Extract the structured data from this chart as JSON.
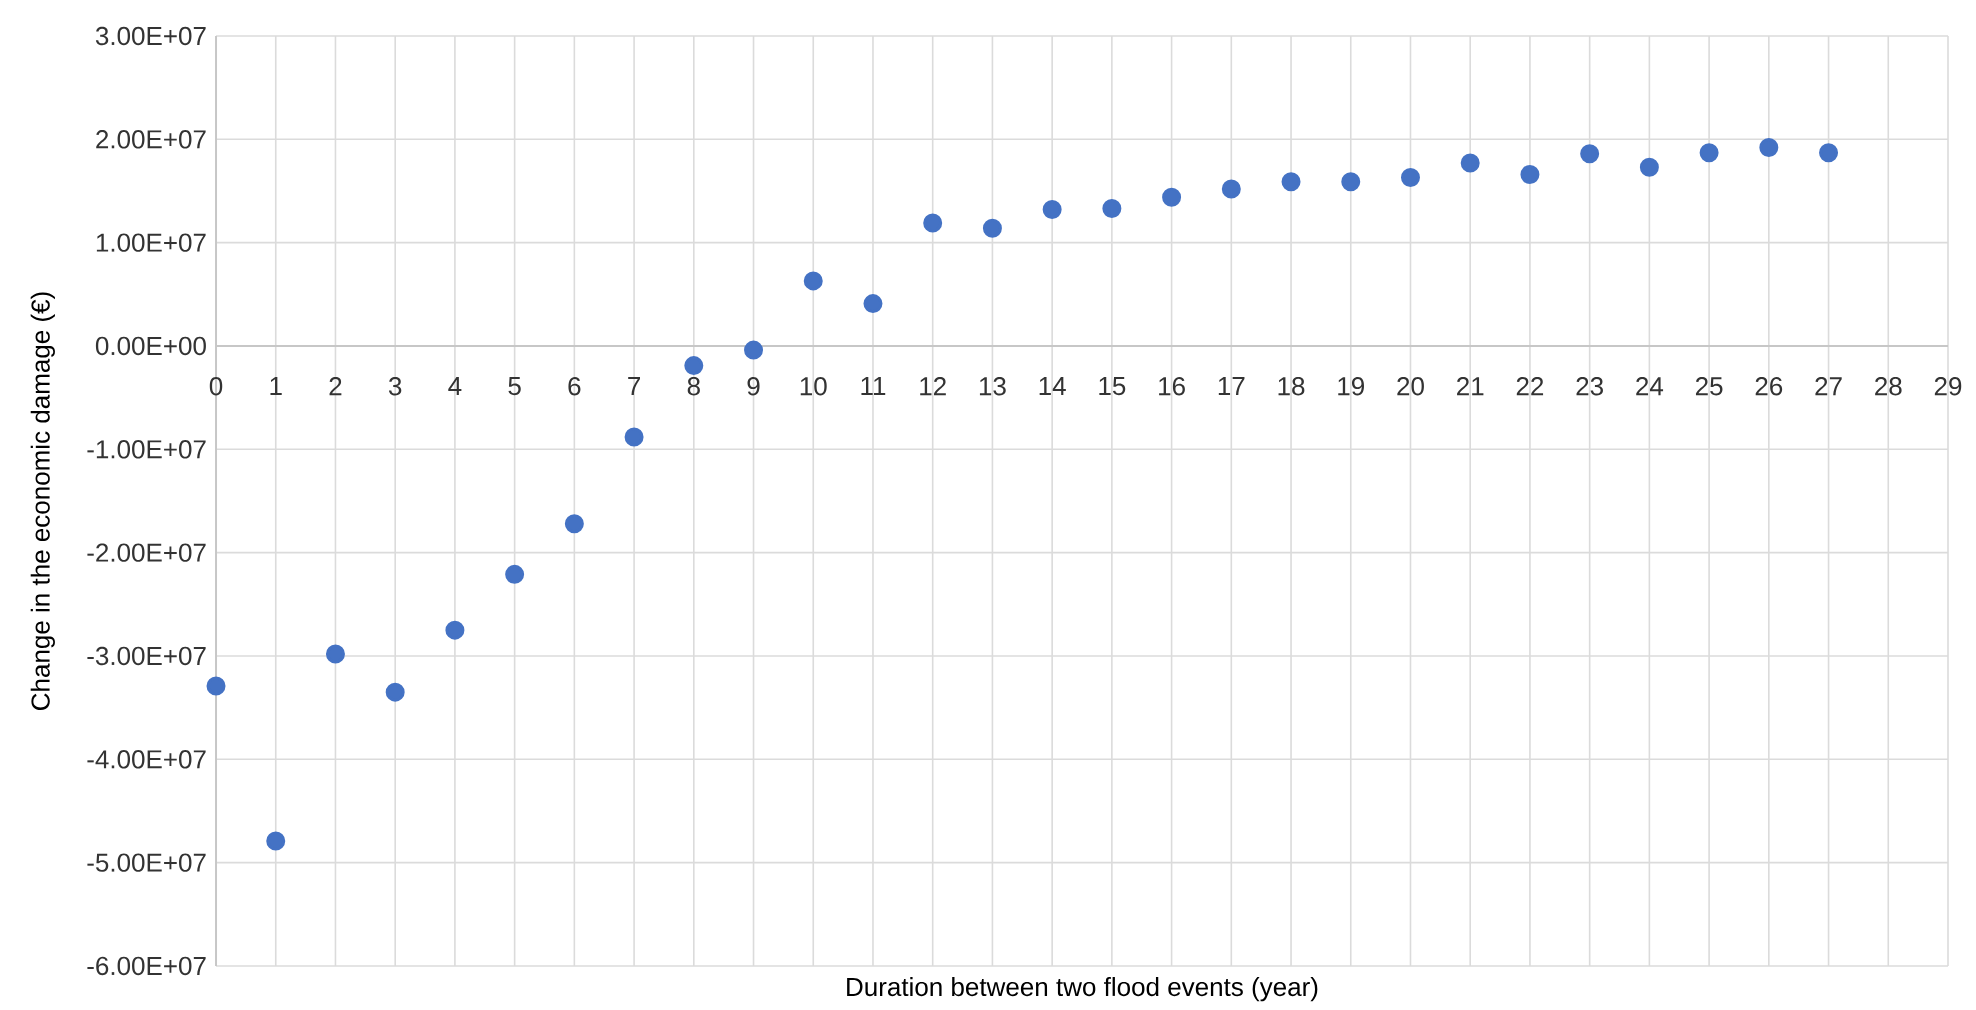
{
  "chart_data": {
    "type": "scatter",
    "xlabel": "Duration between two flood events (year)",
    "ylabel": "Change in the economic damage (€)",
    "x": [
      0,
      1,
      2,
      3,
      4,
      5,
      6,
      7,
      8,
      9,
      10,
      11,
      12,
      13,
      14,
      15,
      16,
      17,
      18,
      19,
      20,
      21,
      22,
      23,
      24,
      25,
      26,
      27
    ],
    "series": [
      {
        "color": "#4472c4",
        "values": [
          -32900000,
          -47900000,
          -29800000,
          -33500000,
          -27500000,
          -22100000,
          -17200000,
          -8800000,
          -1900000,
          -400000,
          6300000,
          4100000,
          11900000,
          11400000,
          13200000,
          13300000,
          14400000,
          15200000,
          15900000,
          15900000,
          16300000,
          17700000,
          16600000,
          18600000,
          17300000,
          18700000,
          19200000,
          18700000
        ]
      }
    ],
    "xlim": [
      0,
      29
    ],
    "xticks": [
      0,
      1,
      2,
      3,
      4,
      5,
      6,
      7,
      8,
      9,
      10,
      11,
      12,
      13,
      14,
      15,
      16,
      17,
      18,
      19,
      20,
      21,
      22,
      23,
      24,
      25,
      26,
      27,
      28,
      29
    ],
    "ylim": [
      -60000000,
      30000000
    ],
    "yticks": [
      {
        "value": -60000000,
        "label": "-6.00E+07"
      },
      {
        "value": -50000000,
        "label": "-5.00E+07"
      },
      {
        "value": -40000000,
        "label": "-4.00E+07"
      },
      {
        "value": -30000000,
        "label": "-3.00E+07"
      },
      {
        "value": -20000000,
        "label": "-2.00E+07"
      },
      {
        "value": -10000000,
        "label": "-1.00E+07"
      },
      {
        "value": 0,
        "label": "0.00E+00"
      },
      {
        "value": 10000000,
        "label": "1.00E+07"
      },
      {
        "value": 20000000,
        "label": "2.00E+07"
      },
      {
        "value": 30000000,
        "label": "3.00E+07"
      }
    ],
    "grid": true,
    "marker": "circle"
  }
}
